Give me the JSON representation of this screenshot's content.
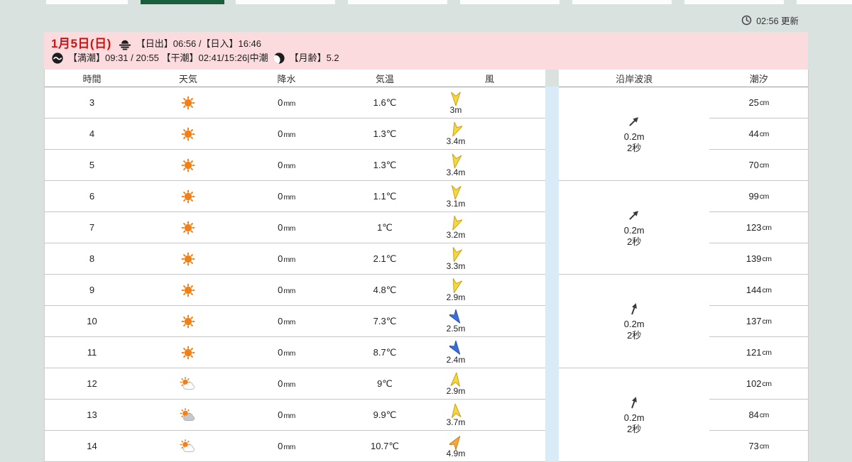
{
  "top_tabs": {
    "count": 8,
    "active_index": 1
  },
  "update": {
    "label": "02:56 更新"
  },
  "banner": {
    "date": "1月5日(日)",
    "daylight": "【日出】06:56 /【日入】16:46",
    "tide": "【満潮】09:31 / 20:55 【干潮】02:41/15:26|中潮",
    "moon": "【月齢】5.2"
  },
  "colors": {
    "active_tab": "#1a5e3c",
    "banner_bg": "#fbdbde",
    "date_red": "#cc1414",
    "band_blue": "#d8ebf7",
    "wind": {
      "yellow": {
        "fill": "#f7d83a",
        "stroke": "#c9a117"
      },
      "blue": {
        "fill": "#3a6fd8",
        "stroke": "#2a55b0"
      },
      "orange": {
        "fill": "#f6a93b",
        "stroke": "#cc7f18"
      }
    }
  },
  "table": {
    "headers": {
      "time": "時間",
      "weather": "天気",
      "precip": "降水",
      "temp": "気温",
      "wind": "風",
      "wave": "沿岸波浪",
      "tide": "潮汐"
    },
    "rows": [
      {
        "hour": "3",
        "icon": "sun",
        "precip": "0",
        "precip_unit": "mm",
        "temp": "1.6℃",
        "wind_speed": "3m",
        "wind_color": "yellow",
        "wind_deg": 180,
        "tide": "25",
        "tide_unit": "cm"
      },
      {
        "hour": "4",
        "icon": "sun",
        "precip": "0",
        "precip_unit": "mm",
        "temp": "1.3℃",
        "wind_speed": "3.4m",
        "wind_color": "yellow",
        "wind_deg": 205,
        "tide": "44",
        "tide_unit": "cm"
      },
      {
        "hour": "5",
        "icon": "sun",
        "precip": "0",
        "precip_unit": "mm",
        "temp": "1.3℃",
        "wind_speed": "3.4m",
        "wind_color": "yellow",
        "wind_deg": 190,
        "tide": "70",
        "tide_unit": "cm"
      },
      {
        "hour": "6",
        "icon": "sun",
        "precip": "0",
        "precip_unit": "mm",
        "temp": "1.1℃",
        "wind_speed": "3.1m",
        "wind_color": "yellow",
        "wind_deg": 185,
        "tide": "99",
        "tide_unit": "cm"
      },
      {
        "hour": "7",
        "icon": "sun",
        "precip": "0",
        "precip_unit": "mm",
        "temp": "1℃",
        "wind_speed": "3.2m",
        "wind_color": "yellow",
        "wind_deg": 205,
        "tide": "123",
        "tide_unit": "cm"
      },
      {
        "hour": "8",
        "icon": "sun",
        "precip": "0",
        "precip_unit": "mm",
        "temp": "2.1℃",
        "wind_speed": "3.3m",
        "wind_color": "yellow",
        "wind_deg": 195,
        "tide": "139",
        "tide_unit": "cm"
      },
      {
        "hour": "9",
        "icon": "sun",
        "precip": "0",
        "precip_unit": "mm",
        "temp": "4.8℃",
        "wind_speed": "2.9m",
        "wind_color": "yellow",
        "wind_deg": 195,
        "tide": "144",
        "tide_unit": "cm"
      },
      {
        "hour": "10",
        "icon": "sun",
        "precip": "0",
        "precip_unit": "mm",
        "temp": "7.3℃",
        "wind_speed": "2.5m",
        "wind_color": "blue",
        "wind_deg": 145,
        "tide": "137",
        "tide_unit": "cm"
      },
      {
        "hour": "11",
        "icon": "sun",
        "precip": "0",
        "precip_unit": "mm",
        "temp": "8.7℃",
        "wind_speed": "2.4m",
        "wind_color": "blue",
        "wind_deg": 145,
        "tide": "121",
        "tide_unit": "cm"
      },
      {
        "hour": "12",
        "icon": "sun-cloud",
        "precip": "0",
        "precip_unit": "mm",
        "temp": "9℃",
        "wind_speed": "2.9m",
        "wind_color": "yellow",
        "wind_deg": 5,
        "tide": "102",
        "tide_unit": "cm"
      },
      {
        "hour": "13",
        "icon": "sun-graycloud",
        "precip": "0",
        "precip_unit": "mm",
        "temp": "9.9℃",
        "wind_speed": "3.7m",
        "wind_color": "yellow",
        "wind_deg": 355,
        "tide": "84",
        "tide_unit": "cm"
      },
      {
        "hour": "14",
        "icon": "sun-cloud",
        "precip": "0",
        "precip_unit": "mm",
        "temp": "10.7℃",
        "wind_speed": "4.9m",
        "wind_color": "orange",
        "wind_deg": 35,
        "tide": "73",
        "tide_unit": "cm"
      }
    ],
    "wave_groups": [
      {
        "height": "0.2m",
        "period": "2秒",
        "arrow_deg": 45
      },
      {
        "height": "0.2m",
        "period": "2秒",
        "arrow_deg": 45
      },
      {
        "height": "0.2m",
        "period": "2秒",
        "arrow_deg": 20
      },
      {
        "height": "0.2m",
        "period": "2秒",
        "arrow_deg": 20
      }
    ]
  }
}
